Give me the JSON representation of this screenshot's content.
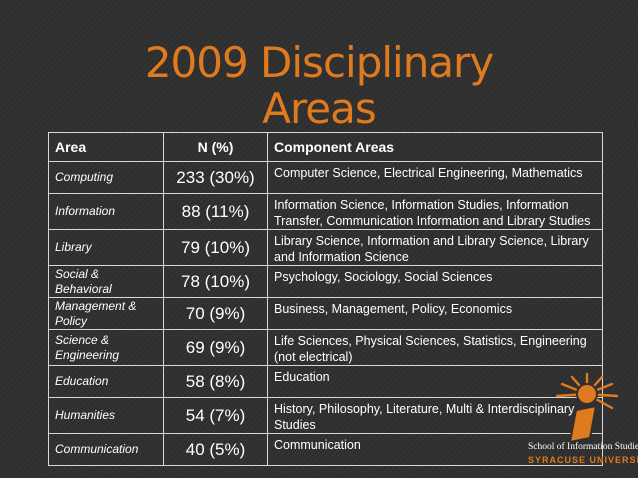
{
  "title": {
    "line1": "2009 Disciplinary",
    "line2": "Areas"
  },
  "table": {
    "headers": [
      "Area",
      "N (%)",
      "Component Areas"
    ],
    "rows": [
      {
        "area": "Computing",
        "n": "233 (30%)",
        "components": "Computer Science, Electrical Engineering, Mathematics"
      },
      {
        "area": "Information",
        "n": "88 (11%)",
        "components": "Information Science, Information Studies, Information Transfer, Communication Information and Library Studies"
      },
      {
        "area": "Library",
        "n": "79 (10%)",
        "components": "Library Science, Information and Library Science, Library and Information Science"
      },
      {
        "area": "Social & Behavioral",
        "n": "78 (10%)",
        "components": "Psychology, Sociology, Social Sciences"
      },
      {
        "area": "Management & Policy",
        "n": "70 (9%)",
        "components": "Business, Management, Policy, Economics"
      },
      {
        "area": "Science & Engineering",
        "n": "69 (9%)",
        "components": "Life Sciences, Physical Sciences, Statistics, Engineering (not electrical)"
      },
      {
        "area": "Education",
        "n": "58 (8%)",
        "components": "Education"
      },
      {
        "area": "Humanities",
        "n": "54 (7%)",
        "components": "History, Philosophy, Literature, Multi & Interdisciplinary Studies"
      },
      {
        "area": "Communication",
        "n": "40 (5%)",
        "components": "Communication"
      }
    ]
  },
  "logo": {
    "line1": "School of Information Studies",
    "line2": "SYRACUSE UNIVERSITY",
    "icon": "ischool-i-sunburst-icon"
  },
  "colors": {
    "accent": "#e07a1f",
    "background": "#2f2f2f",
    "text": "#ffffff"
  }
}
